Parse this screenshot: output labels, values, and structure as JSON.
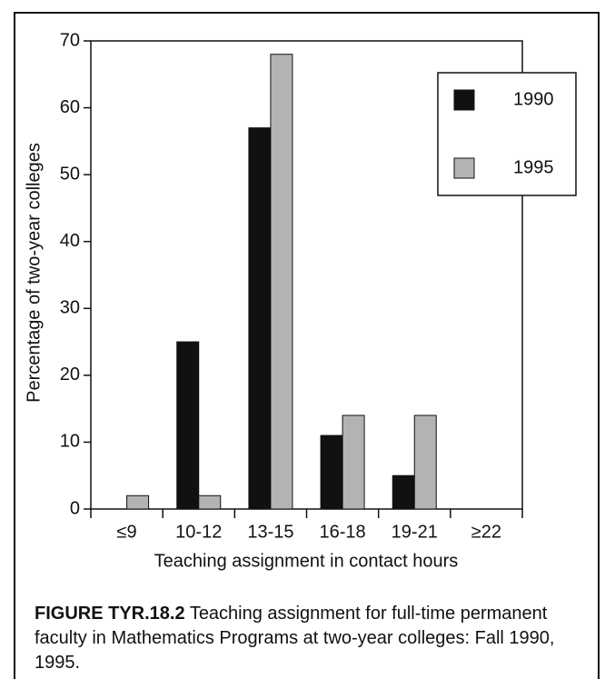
{
  "chart_data": {
    "type": "bar",
    "categories": [
      "≤9",
      "10-12",
      "13-15",
      "16-18",
      "19-21",
      "≥22"
    ],
    "series": [
      {
        "name": "1990",
        "color": "#111111",
        "values": [
          0,
          25,
          57,
          11,
          5,
          0
        ]
      },
      {
        "name": "1995",
        "color": "#b3b3b3",
        "values": [
          2,
          2,
          68,
          14,
          14,
          0
        ]
      }
    ],
    "ylim": [
      0,
      70
    ],
    "yticks": [
      0,
      10,
      20,
      30,
      40,
      50,
      60,
      70
    ],
    "y_label": "Percentage of two-year colleges",
    "x_label": "Teaching assignment in contact hours",
    "legend": "upper right",
    "caption_label": "FIGURE TYR.18.2",
    "caption": "Teaching assignment for full-time permanent faculty in Mathematics Programs at two-year colleges: Fall 1990, 1995."
  }
}
